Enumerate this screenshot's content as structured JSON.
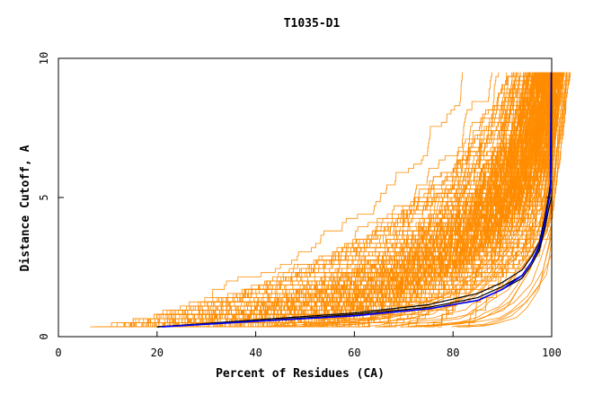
{
  "chart_data": {
    "type": "line",
    "title": "T1035-D1",
    "xlabel": "Percent of Residues (CA)",
    "ylabel": "Distance Cutoff, A",
    "xlim": [
      0,
      100
    ],
    "ylim": [
      0,
      10
    ],
    "x_ticks": [
      "0",
      "20",
      "40",
      "60",
      "80",
      "100"
    ],
    "y_ticks": [
      "0",
      "5",
      "10"
    ],
    "grid": false,
    "legend": "none",
    "colors": {
      "background_curves": "#ff8c00",
      "highlight_dark": "#000000",
      "highlight_blue": "#0000ff",
      "axis": "#000000"
    },
    "series": [
      {
        "color": "#000000",
        "points": [
          [
            20,
            0.35
          ],
          [
            40,
            0.6
          ],
          [
            60,
            0.85
          ],
          [
            75,
            1.15
          ],
          [
            85,
            1.55
          ],
          [
            90,
            1.95
          ],
          [
            94,
            2.4
          ],
          [
            96,
            2.9
          ],
          [
            97.5,
            3.4
          ],
          [
            98.5,
            4.2
          ],
          [
            99.3,
            5.0
          ],
          [
            99.8,
            5.6
          ]
        ]
      },
      {
        "color": "#000000",
        "points": [
          [
            20,
            0.35
          ],
          [
            40,
            0.55
          ],
          [
            60,
            0.8
          ],
          [
            75,
            1.05
          ],
          [
            85,
            1.4
          ],
          [
            90,
            1.8
          ],
          [
            94,
            2.2
          ],
          [
            96,
            2.7
          ],
          [
            97.5,
            3.2
          ],
          [
            98.5,
            3.9
          ],
          [
            99.2,
            4.7
          ],
          [
            99.8,
            5.3
          ]
        ]
      },
      {
        "color": "#000000",
        "points": [
          [
            20,
            0.35
          ],
          [
            40,
            0.55
          ],
          [
            60,
            0.75
          ],
          [
            75,
            1.0
          ],
          [
            85,
            1.3
          ],
          [
            90,
            1.7
          ],
          [
            94,
            2.1
          ],
          [
            96,
            2.6
          ],
          [
            97.5,
            3.1
          ],
          [
            98.5,
            3.8
          ],
          [
            99.3,
            4.5
          ],
          [
            99.9,
            5.0
          ]
        ]
      },
      {
        "color": "#0000ff",
        "points": [
          [
            21,
            0.35
          ],
          [
            40,
            0.55
          ],
          [
            60,
            0.75
          ],
          [
            75,
            1.0
          ],
          [
            85,
            1.3
          ],
          [
            90,
            1.7
          ],
          [
            94,
            2.2
          ],
          [
            96,
            2.7
          ],
          [
            97.5,
            3.3
          ],
          [
            98.5,
            4.0
          ],
          [
            99.2,
            4.7
          ],
          [
            99.7,
            5.2
          ],
          [
            99.9,
            9.5
          ]
        ]
      }
    ],
    "background_curve_count": 230
  }
}
